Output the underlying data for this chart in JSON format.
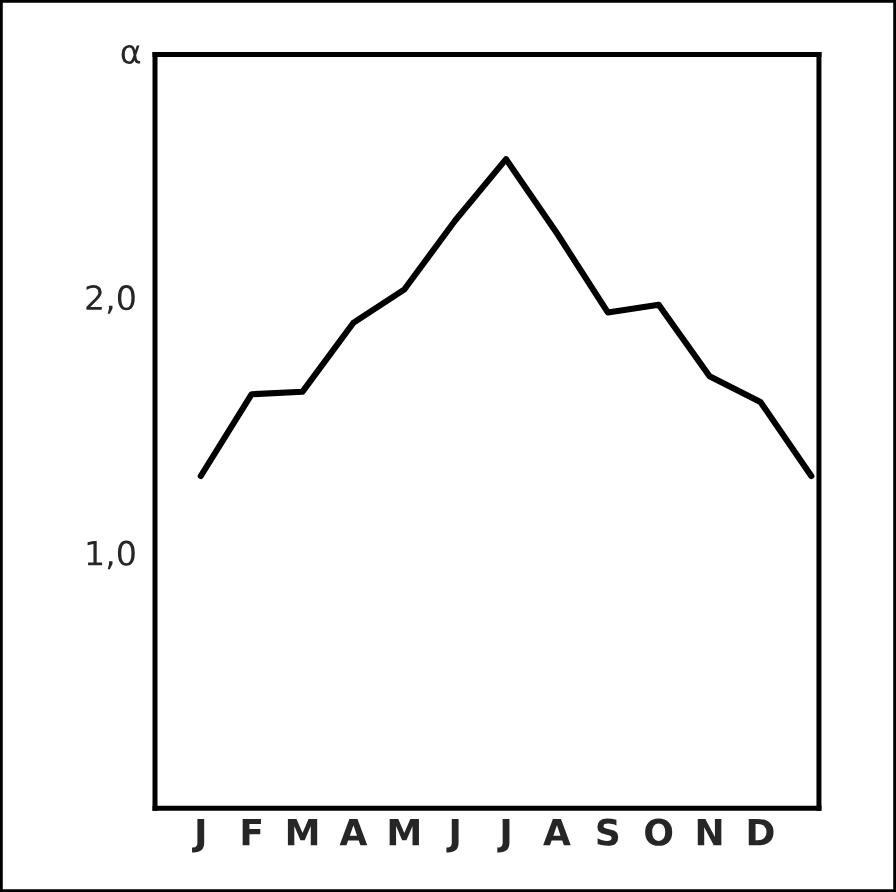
{
  "chart_data": {
    "type": "line",
    "ylabel": "α",
    "categories": [
      "J",
      "F",
      "M",
      "A",
      "M",
      "J",
      "J",
      "A",
      "S",
      "O",
      "N",
      "D",
      null
    ],
    "series": [
      {
        "color": "#000000",
        "values": [
          1.3,
          1.62,
          1.63,
          1.9,
          2.03,
          2.3,
          2.54,
          2.25,
          1.94,
          1.97,
          1.69,
          1.59,
          1.3
        ]
      }
    ],
    "ylim": [
      0,
      2.95
    ],
    "yticks": [
      {
        "value": 1,
        "label": "1,0"
      },
      {
        "value": 2,
        "label": "2,0"
      }
    ],
    "grid": false,
    "legend": false,
    "marker": "none",
    "line_style": "solid"
  }
}
